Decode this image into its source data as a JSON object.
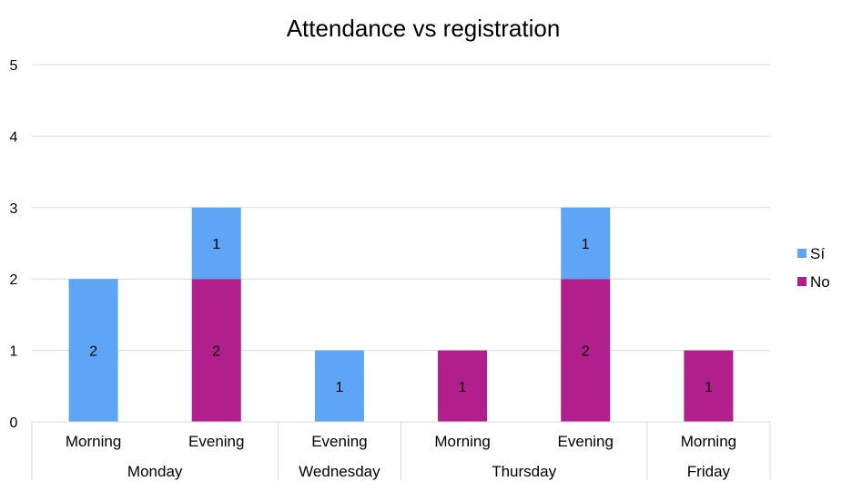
{
  "chart_data": {
    "type": "bar",
    "stacked": true,
    "title": "Attendance vs registration",
    "xlabel": "",
    "ylabel": "",
    "ylim": [
      0,
      5
    ],
    "yticks": [
      "0",
      "1",
      "2",
      "3",
      "4",
      "5"
    ],
    "grid": true,
    "legend_position": "right",
    "categories": [
      "Morning",
      "Evening",
      "Evening",
      "Morning",
      "Evening",
      "Morning"
    ],
    "groups": [
      {
        "label": "Monday",
        "count": 2
      },
      {
        "label": "Wednesday",
        "count": 1
      },
      {
        "label": "Thursday",
        "count": 2
      },
      {
        "label": "Friday",
        "count": 1
      }
    ],
    "series": [
      {
        "name": "No",
        "color": "#b01f8c",
        "values": [
          0,
          2,
          0,
          1,
          2,
          1
        ]
      },
      {
        "name": "Sí",
        "color": "#5ea6f5",
        "values": [
          2,
          1,
          1,
          0,
          1,
          0
        ]
      }
    ],
    "legend_order": [
      "Sí",
      "No"
    ]
  }
}
